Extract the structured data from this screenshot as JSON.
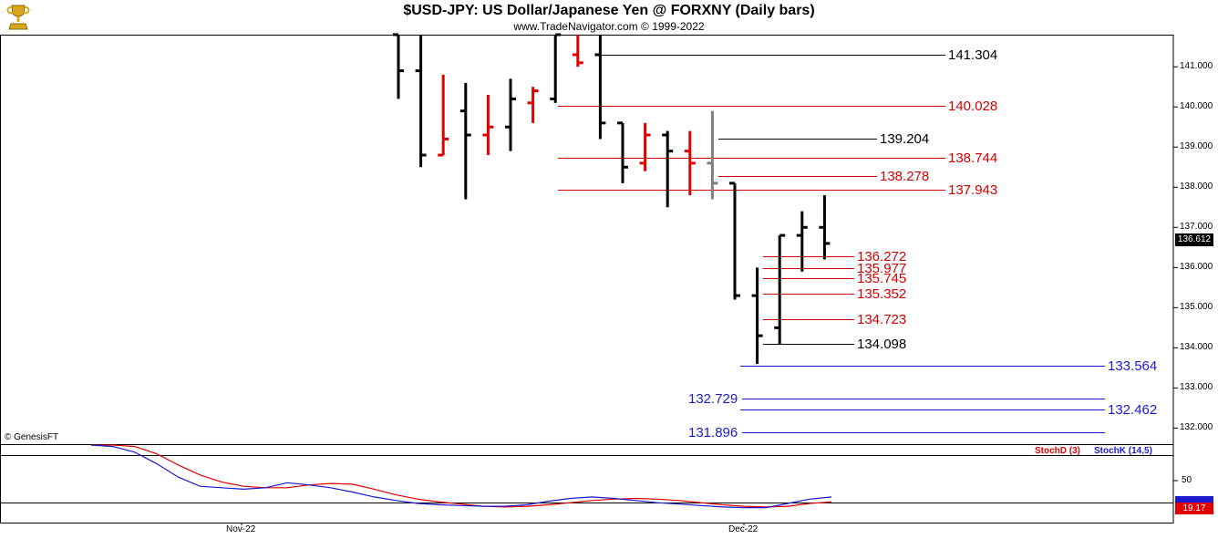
{
  "header": {
    "title": "$USD-JPY:  US Dollar/Japanese Yen @ FORXNY  (Daily bars)",
    "subtitle": "www.TradeNavigator.com © 1999-2022"
  },
  "copyright": "© GenesisFT",
  "colors": {
    "up": "#e00000",
    "down": "#000000",
    "neutral": "#808080",
    "red_level": "#d00000",
    "black_level": "#000000",
    "blue_level": "#1a1ad0",
    "stoch_d": "#e00000",
    "stoch_k": "#1a1ad0"
  },
  "chart_data": [
    {
      "type": "ohlc",
      "ylim": [
        131.6,
        141.8
      ],
      "y_ticks": [
        "132.000",
        "133.000",
        "134.000",
        "135.000",
        "136.000",
        "137.000",
        "138.000",
        "139.000",
        "140.000",
        "141.000"
      ],
      "y_tick_values": [
        132,
        133,
        134,
        135,
        136,
        137,
        138,
        139,
        140,
        141
      ],
      "x_labels": [
        "Nov-22",
        "Dec-22"
      ],
      "x_label_index": [
        0,
        16
      ],
      "last_price": "136.612",
      "bars": [
        {
          "o": 141.8,
          "h": 141.8,
          "l": 140.2,
          "c": 140.9,
          "dir": "down"
        },
        {
          "o": 140.9,
          "h": 141.8,
          "l": 138.5,
          "c": 138.8,
          "dir": "down"
        },
        {
          "o": 138.8,
          "h": 140.8,
          "l": 138.8,
          "c": 139.2,
          "dir": "up"
        },
        {
          "o": 139.9,
          "h": 140.6,
          "l": 137.7,
          "c": 139.3,
          "dir": "down"
        },
        {
          "o": 139.3,
          "h": 140.3,
          "l": 138.8,
          "c": 139.5,
          "dir": "up"
        },
        {
          "o": 139.5,
          "h": 140.7,
          "l": 138.9,
          "c": 140.2,
          "dir": "down"
        },
        {
          "o": 140.1,
          "h": 140.5,
          "l": 139.6,
          "c": 140.4,
          "dir": "up"
        },
        {
          "o": 140.2,
          "h": 141.8,
          "l": 140.1,
          "c": 141.8,
          "dir": "down"
        },
        {
          "o": 141.3,
          "h": 141.8,
          "l": 141.0,
          "c": 141.1,
          "dir": "up"
        },
        {
          "o": 141.3,
          "h": 141.8,
          "l": 139.2,
          "c": 139.6,
          "dir": "down"
        },
        {
          "o": 139.6,
          "h": 139.6,
          "l": 138.1,
          "c": 138.5,
          "dir": "down"
        },
        {
          "o": 138.6,
          "h": 139.6,
          "l": 138.4,
          "c": 139.3,
          "dir": "up"
        },
        {
          "o": 139.3,
          "h": 139.4,
          "l": 137.5,
          "c": 138.9,
          "dir": "down"
        },
        {
          "o": 138.9,
          "h": 139.4,
          "l": 137.8,
          "c": 138.6,
          "dir": "up"
        },
        {
          "o": 138.6,
          "h": 139.9,
          "l": 137.7,
          "c": 138.1,
          "dir": "neutral"
        },
        {
          "o": 138.1,
          "h": 138.1,
          "l": 135.2,
          "c": 135.3,
          "dir": "down"
        },
        {
          "o": 135.3,
          "h": 136.0,
          "l": 133.6,
          "c": 134.3,
          "dir": "down"
        },
        {
          "o": 134.5,
          "h": 136.8,
          "l": 134.1,
          "c": 136.8,
          "dir": "down"
        },
        {
          "o": 136.8,
          "h": 137.4,
          "l": 135.9,
          "c": 137.0,
          "dir": "down"
        },
        {
          "o": 137.0,
          "h": 137.8,
          "l": 136.2,
          "c": 136.6,
          "dir": "down"
        }
      ],
      "levels": [
        {
          "label": "141.304",
          "value": 141.304,
          "color": "black"
        },
        {
          "label": "140.028",
          "value": 140.028,
          "color": "red"
        },
        {
          "label": "139.204",
          "value": 139.204,
          "color": "black"
        },
        {
          "label": "138.744",
          "value": 138.744,
          "color": "red"
        },
        {
          "label": "138.278",
          "value": 138.278,
          "color": "red"
        },
        {
          "label": "137.943",
          "value": 137.943,
          "color": "red"
        },
        {
          "label": "136.272",
          "value": 136.272,
          "color": "red"
        },
        {
          "label": "135.977",
          "value": 135.977,
          "color": "red"
        },
        {
          "label": "135.745",
          "value": 135.745,
          "color": "red"
        },
        {
          "label": "135.352",
          "value": 135.352,
          "color": "red"
        },
        {
          "label": "134.723",
          "value": 134.723,
          "color": "red"
        },
        {
          "label": "134.098",
          "value": 134.098,
          "color": "black"
        },
        {
          "label": "133.564",
          "value": 133.564,
          "color": "blue"
        },
        {
          "label": "132.729",
          "value": 132.729,
          "color": "blue"
        },
        {
          "label": "132.462",
          "value": 132.462,
          "color": "blue"
        },
        {
          "label": "131.896",
          "value": 131.896,
          "color": "blue"
        }
      ]
    },
    {
      "type": "line",
      "ylim": [
        0,
        100
      ],
      "y_ticks": [
        "50"
      ],
      "y_tick_values": [
        50
      ],
      "series": [
        {
          "name": "StochD (3)",
          "color": "red",
          "value_label": "19.17",
          "values": [
            100,
            100,
            98,
            88,
            72,
            58,
            48,
            42,
            40,
            40,
            44,
            46,
            45,
            38,
            30,
            24,
            20,
            17,
            14,
            13,
            14,
            16,
            19,
            22,
            24,
            25,
            24,
            22,
            19,
            16,
            14,
            13,
            14,
            18,
            20
          ]
        },
        {
          "name": "StochK (14,5)",
          "color": "blue",
          "value_label": "",
          "values": [
            100,
            98,
            90,
            74,
            55,
            42,
            40,
            38,
            40,
            47,
            44,
            40,
            34,
            27,
            22,
            18,
            16,
            15,
            14,
            14,
            16,
            21,
            25,
            27,
            25,
            22,
            19,
            17,
            15,
            13,
            12,
            12,
            18,
            24,
            27
          ]
        }
      ]
    }
  ]
}
